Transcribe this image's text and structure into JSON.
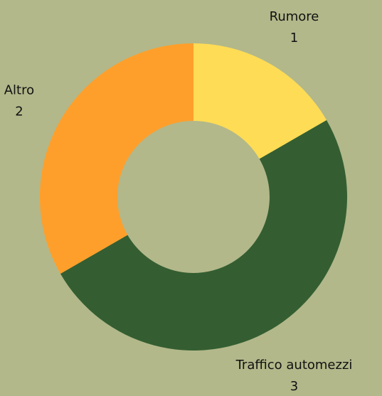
{
  "chart_data": {
    "type": "donut",
    "categories": [
      "Rumore",
      "Traffico automezzi",
      "Altro"
    ],
    "values": [
      1,
      3,
      2
    ],
    "colors": [
      "#ffdc55",
      "#345e31",
      "#ff9f2b"
    ]
  }
}
